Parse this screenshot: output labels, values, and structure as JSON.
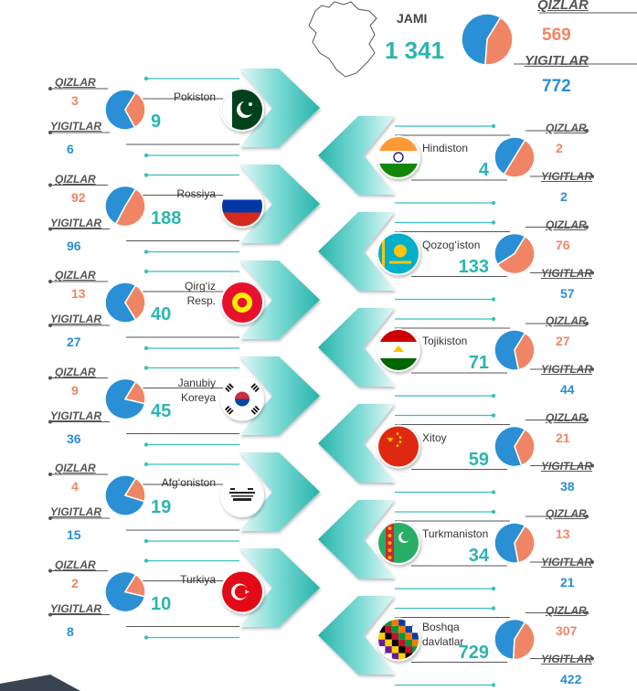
{
  "colors": {
    "qizlar": "#f08566",
    "yigitlar": "#2a8fd4",
    "total": "#2bb5b0",
    "arrow_light": "#6fd8d2",
    "arrow_dark": "#2db8b0",
    "line": "#555555",
    "dot": "#3bbfbf"
  },
  "summary": {
    "total_label": "JAMI",
    "total": "1 341",
    "qizlar_label": "QIZLAR",
    "qizlar": "569",
    "yigitlar_label": "YIGITLAR",
    "yigitlar": "772",
    "map_icon": "region-map-outline"
  },
  "chart_data": {
    "type": "pie",
    "title": "",
    "series_labels": [
      "QIZLAR",
      "YIGITLAR"
    ],
    "total": {
      "label": "JAMI",
      "value": 1341,
      "qizlar": 569,
      "yigitlar": 772
    },
    "countries": [
      {
        "name": "Pokiston",
        "total": 9,
        "qizlar": 3,
        "yigitlar": 6,
        "flag": "pakistan-flag-icon"
      },
      {
        "name": "Hindiston",
        "total": 4,
        "qizlar": 2,
        "yigitlar": 2,
        "flag": "india-flag-icon"
      },
      {
        "name": "Rossiya",
        "total": 188,
        "qizlar": 92,
        "yigitlar": 96,
        "flag": "russia-flag-icon"
      },
      {
        "name": "Qozog‘iston",
        "total": 133,
        "qizlar": 76,
        "yigitlar": 57,
        "flag": "kazakhstan-flag-icon"
      },
      {
        "name": "Qirg‘iz Resp.",
        "total": 40,
        "qizlar": 13,
        "yigitlar": 27,
        "flag": "kyrgyzstan-flag-icon"
      },
      {
        "name": "Tojikiston",
        "total": 71,
        "qizlar": 27,
        "yigitlar": 44,
        "flag": "tajikistan-flag-icon"
      },
      {
        "name": "Janubiy Koreya",
        "total": 45,
        "qizlar": 9,
        "yigitlar": 36,
        "flag": "south-korea-flag-icon"
      },
      {
        "name": "Xitoy",
        "total": 59,
        "qizlar": 21,
        "yigitlar": 38,
        "flag": "china-flag-icon"
      },
      {
        "name": "Afg‘oniston",
        "total": 19,
        "qizlar": 4,
        "yigitlar": 15,
        "flag": "afghanistan-flag-icon"
      },
      {
        "name": "Turkmaniston",
        "total": 34,
        "qizlar": 13,
        "yigitlar": 21,
        "flag": "turkmenistan-flag-icon"
      },
      {
        "name": "Turkiya",
        "total": 10,
        "qizlar": 2,
        "yigitlar": 8,
        "flag": "turkey-flag-icon"
      },
      {
        "name": "Boshqa davlatlar",
        "total": 729,
        "qizlar": 307,
        "yigitlar": 422,
        "flag": "world-flags-icon"
      }
    ]
  }
}
